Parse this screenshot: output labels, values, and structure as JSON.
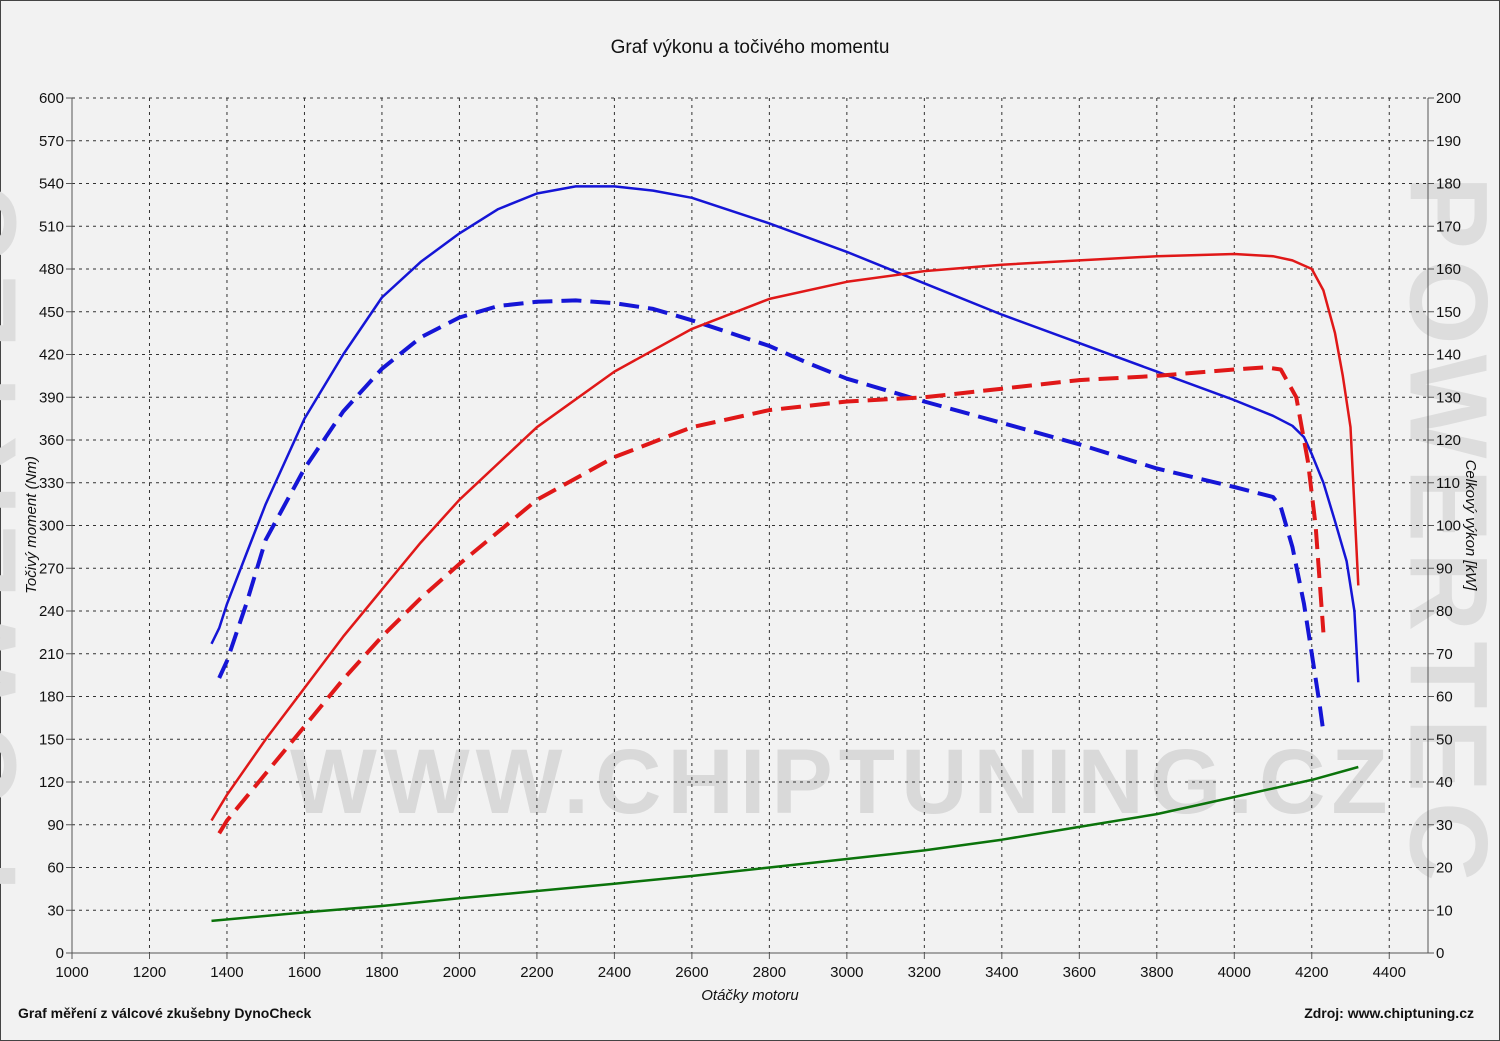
{
  "footer": {
    "left": "Graf měření z válcové zkušebny DynoCheck",
    "right": "Zdroj: www.chiptuning.cz"
  },
  "watermark": {
    "main": "WWW.CHIPTUNING.CZ",
    "side": "POWERTEC"
  },
  "chart_data": {
    "type": "line",
    "title": "Graf výkonu a točivého momentu",
    "xlabel": "Otáčky motoru",
    "ylabel_left": "Točivý moment (Nm)",
    "ylabel_right": "Celkový výkon [kW]",
    "xlim": [
      1000,
      4500
    ],
    "ylim_left": [
      0,
      600
    ],
    "ylim_right": [
      0,
      200
    ],
    "x_ticks": [
      1000,
      1200,
      1400,
      1600,
      1800,
      2000,
      2200,
      2400,
      2600,
      2800,
      3000,
      3200,
      3400,
      3600,
      3800,
      4000,
      4200,
      4400
    ],
    "y_ticks_left": [
      0,
      30,
      60,
      90,
      120,
      150,
      180,
      210,
      240,
      270,
      300,
      330,
      360,
      390,
      420,
      450,
      480,
      510,
      540,
      570,
      600
    ],
    "y_ticks_right": [
      0,
      10,
      20,
      30,
      40,
      50,
      60,
      70,
      80,
      90,
      100,
      110,
      120,
      130,
      140,
      150,
      160,
      170,
      180,
      190,
      200
    ],
    "grid": true,
    "colors": {
      "torque": "#1515d6",
      "power": "#e01818",
      "loss": "#0b730b"
    },
    "series": [
      {
        "axis": "left",
        "color": "#1515d6",
        "dashed": false,
        "x": [
          1360,
          1380,
          1400,
          1450,
          1500,
          1600,
          1700,
          1800,
          1900,
          2000,
          2100,
          2200,
          2300,
          2400,
          2500,
          2600,
          2800,
          3000,
          3200,
          3400,
          3600,
          3800,
          4000,
          4100,
          4150,
          4180,
          4200,
          4230,
          4260,
          4290,
          4310,
          4320
        ],
        "y": [
          217,
          228,
          245,
          280,
          315,
          375,
          420,
          460,
          485,
          505,
          522,
          533,
          538,
          538,
          535,
          530,
          512,
          492,
          470,
          448,
          428,
          408,
          388,
          377,
          370,
          362,
          350,
          330,
          303,
          275,
          240,
          190
        ]
      },
      {
        "axis": "left",
        "color": "#1515d6",
        "dashed": true,
        "x": [
          1380,
          1400,
          1450,
          1500,
          1600,
          1700,
          1800,
          1900,
          2000,
          2100,
          2200,
          2300,
          2400,
          2500,
          2600,
          2700,
          2800,
          2900,
          3000,
          3200,
          3400,
          3600,
          3800,
          4000,
          4100,
          4120,
          4150,
          4180,
          4200,
          4220,
          4230
        ],
        "y": [
          193,
          205,
          245,
          290,
          340,
          380,
          410,
          432,
          446,
          454,
          457,
          458,
          456,
          452,
          444,
          435,
          426,
          414,
          403,
          387,
          372,
          357,
          340,
          327,
          320,
          313,
          285,
          245,
          210,
          175,
          155
        ]
      },
      {
        "axis": "right",
        "color": "#e01818",
        "dashed": false,
        "x": [
          1360,
          1400,
          1500,
          1600,
          1700,
          1800,
          1900,
          2000,
          2200,
          2400,
          2600,
          2800,
          3000,
          3200,
          3400,
          3600,
          3800,
          4000,
          4100,
          4150,
          4200,
          4230,
          4260,
          4280,
          4300,
          4320
        ],
        "y": [
          31,
          37,
          50,
          62,
          74,
          85,
          96,
          106,
          123,
          136,
          146,
          153,
          157,
          159.5,
          161,
          162,
          163,
          163.5,
          163,
          162,
          160,
          155,
          145,
          135,
          123,
          86
        ]
      },
      {
        "axis": "right",
        "color": "#e01818",
        "dashed": true,
        "x": [
          1380,
          1400,
          1500,
          1600,
          1700,
          1800,
          1900,
          2000,
          2200,
          2400,
          2600,
          2800,
          3000,
          3200,
          3400,
          3600,
          3800,
          4000,
          4080,
          4120,
          4160,
          4190,
          4210,
          4230
        ],
        "y": [
          28,
          31,
          42,
          53,
          64,
          74,
          83,
          91,
          106,
          116,
          123,
          127,
          129,
          130,
          132,
          134,
          135,
          136.5,
          137,
          136.5,
          130,
          115,
          100,
          75
        ]
      },
      {
        "axis": "right",
        "color": "#0b730b",
        "dashed": false,
        "x": [
          1360,
          1600,
          1800,
          2000,
          2200,
          2400,
          2600,
          2800,
          3000,
          3200,
          3400,
          3600,
          3800,
          4000,
          4200,
          4320
        ],
        "y": [
          7.5,
          9.5,
          11,
          12.8,
          14.5,
          16.2,
          18,
          20,
          22,
          24,
          26.5,
          29.5,
          32.5,
          36.5,
          40.5,
          43.5
        ]
      }
    ]
  }
}
